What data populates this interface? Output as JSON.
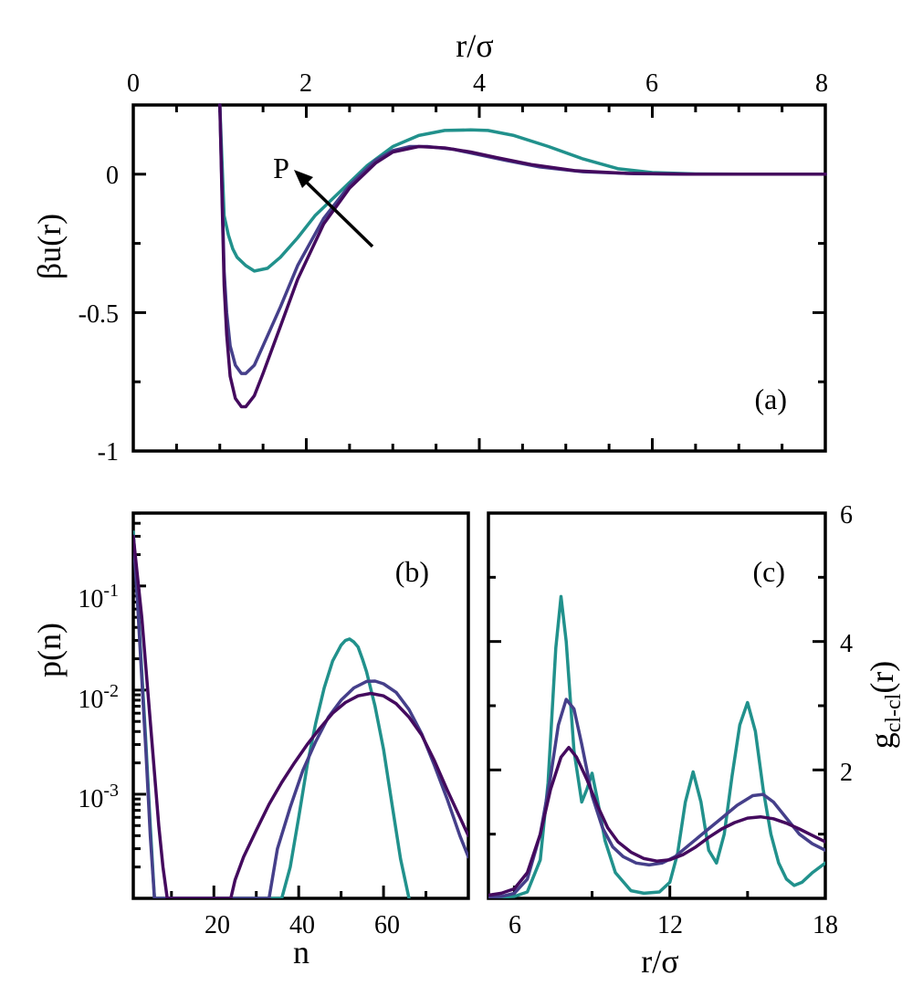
{
  "colors": {
    "teal": "#21918c",
    "indigo": "#453f8a",
    "purple": "#440a5e"
  },
  "chart_data": [
    {
      "id": "a",
      "type": "line",
      "panel_label": "(a)",
      "xlabel": "r/σ",
      "ylabel": "βu(r)",
      "xlim": [
        0,
        8
      ],
      "ylim": [
        -1,
        0.25
      ],
      "x_ticks": [
        "0",
        "2",
        "4",
        "6",
        "8"
      ],
      "y_ticks": [
        "0",
        "-0.5",
        "-1"
      ],
      "annotation": "P",
      "series": [
        {
          "name": "teal",
          "color": "teal",
          "x": [
            1.0,
            1.05,
            1.1,
            1.15,
            1.2,
            1.3,
            1.4,
            1.55,
            1.7,
            1.9,
            2.1,
            2.4,
            2.7,
            3.0,
            3.3,
            3.6,
            3.9,
            4.1,
            4.4,
            4.8,
            5.2,
            5.6,
            6.0,
            6.5,
            7.0,
            8.0
          ],
          "y": [
            0.25,
            -0.15,
            -0.22,
            -0.27,
            -0.3,
            -0.33,
            -0.35,
            -0.34,
            -0.3,
            -0.23,
            -0.15,
            -0.06,
            0.03,
            0.1,
            0.14,
            0.158,
            0.16,
            0.158,
            0.14,
            0.1,
            0.055,
            0.02,
            0.006,
            0.001,
            0.0,
            0.0
          ]
        },
        {
          "name": "indigo",
          "color": "indigo",
          "x": [
            1.0,
            1.05,
            1.08,
            1.12,
            1.18,
            1.25,
            1.3,
            1.4,
            1.5,
            1.7,
            1.9,
            2.2,
            2.5,
            2.8,
            3.0,
            3.2,
            3.4,
            3.7,
            4.0,
            4.3,
            4.7,
            5.2,
            5.8,
            6.5,
            8.0
          ],
          "y": [
            0.25,
            -0.35,
            -0.5,
            -0.62,
            -0.69,
            -0.72,
            -0.72,
            -0.69,
            -0.62,
            -0.48,
            -0.33,
            -0.16,
            -0.04,
            0.05,
            0.085,
            0.1,
            0.1,
            0.09,
            0.07,
            0.05,
            0.026,
            0.009,
            0.002,
            0.0,
            0.0
          ]
        },
        {
          "name": "purple",
          "color": "purple",
          "x": [
            1.0,
            1.05,
            1.08,
            1.12,
            1.18,
            1.25,
            1.3,
            1.4,
            1.5,
            1.7,
            1.9,
            2.2,
            2.5,
            2.8,
            3.0,
            3.3,
            3.6,
            3.9,
            4.2,
            4.6,
            5.1,
            5.7,
            6.4,
            8.0
          ],
          "y": [
            0.25,
            -0.4,
            -0.58,
            -0.73,
            -0.81,
            -0.84,
            -0.84,
            -0.8,
            -0.72,
            -0.55,
            -0.38,
            -0.18,
            -0.05,
            0.04,
            0.08,
            0.1,
            0.095,
            0.08,
            0.06,
            0.035,
            0.013,
            0.003,
            0.0,
            0.0
          ]
        }
      ]
    },
    {
      "id": "b",
      "type": "line",
      "panel_label": "(b)",
      "xlabel": "n",
      "ylabel": "p(n)",
      "xlim": [
        1,
        80
      ],
      "ylim_log10": [
        -4,
        -0.3
      ],
      "x_ticks": [
        "20",
        "40",
        "60"
      ],
      "y_ticks": [
        "10-1",
        "10-2",
        "10-3"
      ],
      "series": [
        {
          "name": "teal",
          "color": "teal",
          "x": [
            1,
            2,
            3,
            4,
            5,
            6,
            36,
            38,
            40,
            42,
            44,
            46,
            48,
            50,
            51,
            52,
            53,
            54,
            55,
            56,
            58,
            60,
            62,
            64,
            66
          ],
          "y": [
            0.33,
            0.08,
            0.015,
            0.003,
            0.0005,
            9e-05,
            8e-05,
            0.0002,
            0.0006,
            0.0019,
            0.0048,
            0.0105,
            0.019,
            0.027,
            0.03,
            0.031,
            0.029,
            0.026,
            0.02,
            0.015,
            0.007,
            0.0027,
            0.0008,
            0.00024,
            8e-05
          ]
        },
        {
          "name": "indigo",
          "color": "indigo",
          "x": [
            1,
            2,
            3,
            4,
            5,
            6,
            33,
            35,
            38,
            41,
            44,
            47,
            50,
            53,
            56,
            58,
            60,
            63,
            66,
            69,
            72,
            75,
            78,
            80
          ],
          "y": [
            0.3,
            0.07,
            0.013,
            0.0025,
            0.0004,
            8e-05,
            0.0001,
            0.0003,
            0.00075,
            0.0017,
            0.0032,
            0.0055,
            0.008,
            0.0105,
            0.0121,
            0.0122,
            0.0115,
            0.0095,
            0.0065,
            0.0038,
            0.0019,
            0.0009,
            0.0004,
            0.00025
          ]
        },
        {
          "name": "purple",
          "color": "purple",
          "x": [
            1,
            3,
            5,
            7,
            8,
            9,
            24,
            25,
            27,
            30,
            33,
            36,
            39,
            42,
            45,
            48,
            51,
            54,
            57,
            60,
            63,
            66,
            69,
            72,
            75,
            78,
            80
          ],
          "y": [
            0.3,
            0.05,
            0.005,
            0.0005,
            0.0002,
            0.0001,
            0.0001,
            0.00015,
            0.00025,
            0.00045,
            0.0008,
            0.0013,
            0.002,
            0.003,
            0.0043,
            0.006,
            0.0076,
            0.0088,
            0.0093,
            0.0088,
            0.0074,
            0.0055,
            0.0037,
            0.0021,
            0.0011,
            0.0006,
            0.0004
          ]
        }
      ]
    },
    {
      "id": "c",
      "type": "line",
      "panel_label": "(c)",
      "xlabel": "r/σ",
      "ylabel": "gcl-cl(r)",
      "ylabel_main": "g",
      "ylabel_sub": "cl-cl",
      "ylabel_tail": "(r)",
      "xlim": [
        5,
        18
      ],
      "ylim": [
        0,
        6
      ],
      "x_ticks": [
        "6",
        "12",
        "18"
      ],
      "y_ticks": [
        "6",
        "4",
        "2"
      ],
      "series": [
        {
          "name": "teal",
          "color": "teal",
          "x": [
            5.0,
            5.5,
            6.0,
            6.5,
            7.0,
            7.3,
            7.6,
            7.8,
            8.0,
            8.3,
            8.6,
            8.8,
            9.0,
            9.2,
            9.5,
            9.9,
            10.5,
            11.0,
            11.6,
            12.0,
            12.3,
            12.6,
            12.9,
            13.2,
            13.5,
            13.8,
            14.1,
            14.4,
            14.7,
            15.0,
            15.3,
            15.6,
            15.9,
            16.2,
            16.5,
            16.8,
            17.1,
            17.5,
            18.0
          ],
          "y": [
            0.02,
            0.02,
            0.03,
            0.1,
            0.6,
            1.8,
            3.9,
            4.7,
            4.0,
            2.3,
            1.5,
            1.7,
            1.95,
            1.55,
            0.9,
            0.4,
            0.12,
            0.08,
            0.1,
            0.25,
            0.7,
            1.5,
            1.97,
            1.5,
            0.75,
            0.55,
            1.0,
            1.9,
            2.7,
            3.05,
            2.6,
            1.7,
            1.0,
            0.55,
            0.3,
            0.2,
            0.25,
            0.4,
            0.55
          ]
        },
        {
          "name": "indigo",
          "color": "indigo",
          "x": [
            5.0,
            5.5,
            6.0,
            6.5,
            7.0,
            7.4,
            7.7,
            8.0,
            8.3,
            8.6,
            9.0,
            9.4,
            9.8,
            10.2,
            10.7,
            11.2,
            11.7,
            12.2,
            12.8,
            13.4,
            14.0,
            14.6,
            15.2,
            15.6,
            16.0,
            16.5,
            17.0,
            17.5,
            18.0
          ],
          "y": [
            0.02,
            0.03,
            0.08,
            0.3,
            1.0,
            1.9,
            2.7,
            3.1,
            2.95,
            2.4,
            1.6,
            1.1,
            0.8,
            0.65,
            0.55,
            0.52,
            0.55,
            0.65,
            0.85,
            1.05,
            1.25,
            1.45,
            1.6,
            1.62,
            1.5,
            1.25,
            1.0,
            0.85,
            0.75
          ]
        },
        {
          "name": "purple",
          "color": "purple",
          "x": [
            5.0,
            5.5,
            6.0,
            6.5,
            7.0,
            7.4,
            7.8,
            8.1,
            8.4,
            8.8,
            9.2,
            9.6,
            10.0,
            10.5,
            11.0,
            11.5,
            12.0,
            12.5,
            13.0,
            13.5,
            14.0,
            14.5,
            15.0,
            15.5,
            16.0,
            16.5,
            17.0,
            17.5,
            18.0
          ],
          "y": [
            0.05,
            0.08,
            0.15,
            0.4,
            1.0,
            1.7,
            2.2,
            2.35,
            2.2,
            1.85,
            1.45,
            1.1,
            0.88,
            0.72,
            0.62,
            0.58,
            0.6,
            0.68,
            0.8,
            0.95,
            1.08,
            1.18,
            1.25,
            1.27,
            1.24,
            1.17,
            1.08,
            0.98,
            0.88
          ]
        }
      ]
    }
  ]
}
